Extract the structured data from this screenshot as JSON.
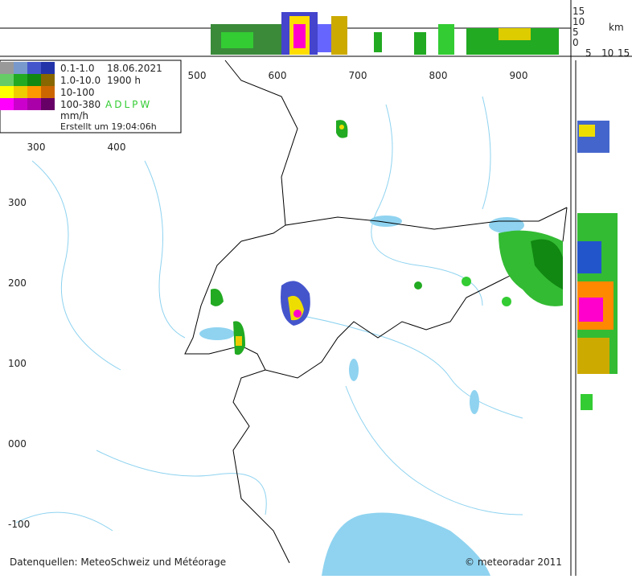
{
  "legend": {
    "rows": [
      {
        "range": "0.1-1.0",
        "info": "18.06.2021"
      },
      {
        "range": "1.0-10.0",
        "info": "1900 h"
      },
      {
        "range": "10-100"
      },
      {
        "range": "100-380",
        "info": "ADLPW"
      }
    ],
    "unit": "mm/h",
    "created": "Erstellt um 19:04:06h"
  },
  "axes": {
    "x_top": [
      "500",
      "600",
      "700",
      "800",
      "900"
    ],
    "x_left": [
      "300",
      "400"
    ],
    "y": [
      "300",
      "200",
      "100",
      "000",
      "-100"
    ]
  },
  "profile": {
    "heights": [
      "15",
      "10",
      "5",
      "0"
    ],
    "unit": "km",
    "widths": [
      "5",
      "10",
      "15"
    ]
  },
  "footer": {
    "sources": "Datenquellen: MeteoSchweiz und Météorage",
    "copyright": "© meteoradar 2011"
  }
}
